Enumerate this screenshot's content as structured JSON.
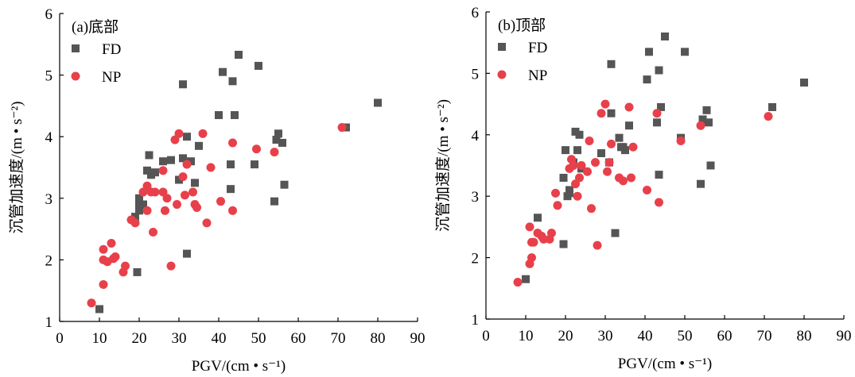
{
  "chart_data": [
    {
      "type": "scatter",
      "title": "(a)底部",
      "xlabel": "PGV/(cm • s⁻¹)",
      "ylabel": "沉管加速度/(m • s⁻²)",
      "xlim": [
        0,
        90
      ],
      "ylim": [
        1,
        6
      ],
      "xticks": [
        "0",
        "10",
        "20",
        "30",
        "40",
        "50",
        "60",
        "70",
        "80",
        "90"
      ],
      "yticks": [
        "1",
        "2",
        "3",
        "4",
        "5",
        "6"
      ],
      "grid": false,
      "legend_position": "top-left",
      "series": [
        {
          "name": "FD",
          "marker": "square",
          "color": "#555555",
          "points": [
            [
              10.0,
              1.2
            ],
            [
              19.5,
              1.8
            ],
            [
              19.0,
              2.7
            ],
            [
              20.0,
              2.8
            ],
            [
              20.0,
              2.9
            ],
            [
              20.0,
              3.0
            ],
            [
              21.0,
              2.9
            ],
            [
              22.0,
              3.45
            ],
            [
              22.5,
              3.7
            ],
            [
              23.0,
              3.38
            ],
            [
              24.0,
              3.42
            ],
            [
              26.0,
              3.6
            ],
            [
              28.0,
              3.62
            ],
            [
              30.0,
              3.3
            ],
            [
              31.0,
              4.85
            ],
            [
              31.0,
              3.65
            ],
            [
              32.0,
              4.0
            ],
            [
              32.0,
              2.1
            ],
            [
              33.0,
              3.6
            ],
            [
              34.0,
              3.25
            ],
            [
              35.0,
              3.85
            ],
            [
              40.0,
              4.35
            ],
            [
              41.0,
              5.05
            ],
            [
              43.0,
              3.15
            ],
            [
              43.0,
              3.55
            ],
            [
              43.5,
              4.9
            ],
            [
              44.0,
              4.35
            ],
            [
              45.0,
              5.33
            ],
            [
              49.0,
              3.55
            ],
            [
              50.0,
              5.15
            ],
            [
              54.0,
              2.95
            ],
            [
              54.5,
              3.95
            ],
            [
              55.0,
              4.05
            ],
            [
              56.0,
              3.9
            ],
            [
              56.5,
              3.22
            ],
            [
              72.0,
              4.15
            ],
            [
              80.0,
              4.55
            ]
          ]
        },
        {
          "name": "NP",
          "marker": "circle",
          "color": "#e8404a",
          "points": [
            [
              8.0,
              1.3
            ],
            [
              11.0,
              1.6
            ],
            [
              11.0,
              2.0
            ],
            [
              11.0,
              2.17
            ],
            [
              12.0,
              1.97
            ],
            [
              13.0,
              2.27
            ],
            [
              13.5,
              2.02
            ],
            [
              14.0,
              2.05
            ],
            [
              16.0,
              1.8
            ],
            [
              16.5,
              1.9
            ],
            [
              18.0,
              2.65
            ],
            [
              19.0,
              2.6
            ],
            [
              21.0,
              3.1
            ],
            [
              22.0,
              3.2
            ],
            [
              22.0,
              2.8
            ],
            [
              23.0,
              3.1
            ],
            [
              23.5,
              2.45
            ],
            [
              24.0,
              3.1
            ],
            [
              26.0,
              3.45
            ],
            [
              26.0,
              3.1
            ],
            [
              26.5,
              2.8
            ],
            [
              27.0,
              3.0
            ],
            [
              28.0,
              1.9
            ],
            [
              29.0,
              3.95
            ],
            [
              29.5,
              2.9
            ],
            [
              30.0,
              4.05
            ],
            [
              31.0,
              3.35
            ],
            [
              31.5,
              3.05
            ],
            [
              32.0,
              3.55
            ],
            [
              33.5,
              3.1
            ],
            [
              34.0,
              2.9
            ],
            [
              34.5,
              2.85
            ],
            [
              36.0,
              4.05
            ],
            [
              37.0,
              2.6
            ],
            [
              38.0,
              3.5
            ],
            [
              40.5,
              2.95
            ],
            [
              43.5,
              3.9
            ],
            [
              43.5,
              2.8
            ],
            [
              49.5,
              3.8
            ],
            [
              54.0,
              3.75
            ],
            [
              71.0,
              4.15
            ]
          ]
        }
      ]
    },
    {
      "type": "scatter",
      "title": "(b)顶部",
      "xlabel": "PGV/(cm • s⁻¹)",
      "ylabel": "沉管加速度/(m • s⁻²)",
      "xlim": [
        0,
        90
      ],
      "ylim": [
        1,
        6
      ],
      "xticks": [
        "0",
        "10",
        "20",
        "30",
        "40",
        "50",
        "60",
        "70",
        "80",
        "90"
      ],
      "yticks": [
        "1",
        "2",
        "3",
        "4",
        "5",
        "6"
      ],
      "grid": false,
      "legend_position": "top-left",
      "series": [
        {
          "name": "FD",
          "marker": "square",
          "color": "#555555",
          "points": [
            [
              10.0,
              1.65
            ],
            [
              13.0,
              2.65
            ],
            [
              19.5,
              2.22
            ],
            [
              19.5,
              3.3
            ],
            [
              20.0,
              3.75
            ],
            [
              20.5,
              3.0
            ],
            [
              21.0,
              3.1
            ],
            [
              21.0,
              3.05
            ],
            [
              22.0,
              3.55
            ],
            [
              22.5,
              4.05
            ],
            [
              23.0,
              3.75
            ],
            [
              23.5,
              4.0
            ],
            [
              24.0,
              3.45
            ],
            [
              29.0,
              3.7
            ],
            [
              31.0,
              3.55
            ],
            [
              31.5,
              5.15
            ],
            [
              31.5,
              4.35
            ],
            [
              32.5,
              2.4
            ],
            [
              33.5,
              3.95
            ],
            [
              34.0,
              3.8
            ],
            [
              34.5,
              3.8
            ],
            [
              35.0,
              3.75
            ],
            [
              36.0,
              4.15
            ],
            [
              40.5,
              4.9
            ],
            [
              41.0,
              5.35
            ],
            [
              43.0,
              4.2
            ],
            [
              43.5,
              3.35
            ],
            [
              43.5,
              5.05
            ],
            [
              44.0,
              4.45
            ],
            [
              45.0,
              5.6
            ],
            [
              49.0,
              3.95
            ],
            [
              50.0,
              5.35
            ],
            [
              54.0,
              3.2
            ],
            [
              54.5,
              4.25
            ],
            [
              55.5,
              4.4
            ],
            [
              56.0,
              4.2
            ],
            [
              56.5,
              3.5
            ],
            [
              72.0,
              4.45
            ],
            [
              80.0,
              4.85
            ]
          ]
        },
        {
          "name": "NP",
          "marker": "circle",
          "color": "#e8404a",
          "points": [
            [
              8.0,
              1.6
            ],
            [
              11.0,
              2.5
            ],
            [
              11.0,
              1.9
            ],
            [
              11.5,
              2.0
            ],
            [
              11.5,
              2.25
            ],
            [
              12.0,
              2.25
            ],
            [
              13.0,
              2.4
            ],
            [
              14.0,
              2.35
            ],
            [
              14.5,
              2.3
            ],
            [
              16.0,
              2.3
            ],
            [
              16.5,
              2.4
            ],
            [
              17.5,
              3.05
            ],
            [
              18.0,
              2.85
            ],
            [
              21.0,
              3.45
            ],
            [
              21.5,
              3.6
            ],
            [
              22.0,
              3.5
            ],
            [
              22.5,
              3.2
            ],
            [
              23.0,
              3.0
            ],
            [
              23.5,
              3.3
            ],
            [
              24.0,
              3.5
            ],
            [
              25.5,
              3.4
            ],
            [
              26.0,
              3.9
            ],
            [
              26.5,
              2.8
            ],
            [
              27.5,
              3.55
            ],
            [
              28.0,
              2.2
            ],
            [
              29.0,
              4.35
            ],
            [
              30.0,
              4.5
            ],
            [
              30.5,
              3.4
            ],
            [
              31.0,
              3.55
            ],
            [
              31.5,
              3.85
            ],
            [
              33.5,
              3.3
            ],
            [
              34.5,
              3.25
            ],
            [
              36.0,
              4.45
            ],
            [
              36.5,
              3.3
            ],
            [
              37.0,
              3.8
            ],
            [
              40.5,
              3.1
            ],
            [
              43.0,
              4.35
            ],
            [
              43.5,
              2.9
            ],
            [
              49.0,
              3.9
            ],
            [
              54.0,
              4.15
            ],
            [
              71.0,
              4.3
            ]
          ]
        }
      ]
    }
  ]
}
